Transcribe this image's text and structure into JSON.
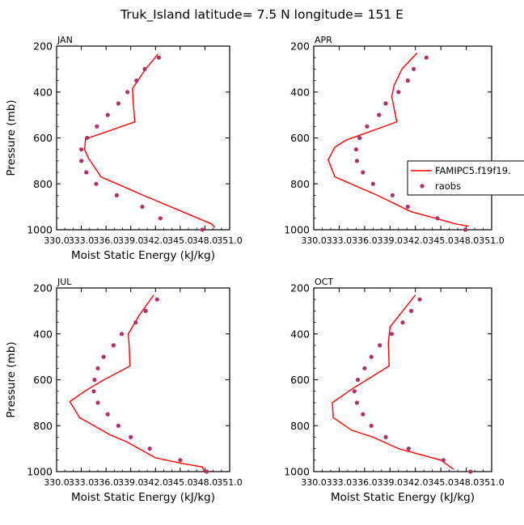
{
  "title": "Truk_Island  latitude= 7.5 N longitude= 151 E",
  "legend": {
    "model_label": "FAMIPC5.f19f19.",
    "obs_label": "raobs"
  },
  "colors": {
    "model_line": "#ff0000",
    "obs_marker": "#b0306a"
  },
  "chart_data": [
    {
      "type": "line",
      "panel": "JAN",
      "xlabel": "Moist Static Energy (kJ/kg)",
      "ylabel": "Pressure (mb)",
      "xlim": [
        330.0,
        351.0
      ],
      "ylim": [
        200,
        1000
      ],
      "y_reversed": true,
      "xticks": [
        330.0,
        333.0,
        336.0,
        339.0,
        342.0,
        345.0,
        348.0,
        351.0
      ],
      "yticks": [
        200,
        400,
        600,
        800,
        1000
      ],
      "legend_shown": false,
      "series": [
        {
          "name": "FAMIPC5.f19f19.",
          "kind": "line",
          "points": [
            [
              342.3,
              235
            ],
            [
              340.8,
              300
            ],
            [
              339.2,
              385
            ],
            [
              339.3,
              450
            ],
            [
              339.5,
              530
            ],
            [
              333.5,
              605
            ],
            [
              333.4,
              650
            ],
            [
              333.9,
              690
            ],
            [
              335.4,
              770
            ],
            [
              340.5,
              850
            ],
            [
              345.5,
              925
            ],
            [
              348.8,
              975
            ],
            [
              349.2,
              990
            ]
          ]
        },
        {
          "name": "raobs",
          "kind": "scatter",
          "points": [
            [
              342.4,
              250
            ],
            [
              340.7,
              300
            ],
            [
              339.7,
              350
            ],
            [
              338.6,
              400
            ],
            [
              337.5,
              450
            ],
            [
              336.2,
              500
            ],
            [
              334.9,
              550
            ],
            [
              333.7,
              600
            ],
            [
              333.0,
              650
            ],
            [
              333.0,
              700
            ],
            [
              333.6,
              750
            ],
            [
              334.8,
              800
            ],
            [
              337.3,
              850
            ],
            [
              340.4,
              900
            ],
            [
              342.6,
              950
            ],
            [
              347.7,
              1000
            ]
          ]
        }
      ]
    },
    {
      "type": "line",
      "panel": "APR",
      "xlabel": "",
      "ylabel": "",
      "xlim": [
        330.0,
        351.0
      ],
      "ylim": [
        200,
        1000
      ],
      "y_reversed": true,
      "xticks": [
        330.0,
        333.0,
        336.0,
        339.0,
        342.0,
        345.0,
        348.0,
        351.0
      ],
      "yticks": [
        200,
        400,
        600,
        800,
        1000
      ],
      "legend_shown": true,
      "legend_position": "right",
      "series": [
        {
          "name": "FAMIPC5.f19f19.",
          "kind": "line",
          "points": [
            [
              342.2,
              230
            ],
            [
              340.4,
              300
            ],
            [
              339.5,
              370
            ],
            [
              339.2,
              420
            ],
            [
              339.8,
              530
            ],
            [
              333.8,
              610
            ],
            [
              332.5,
              640
            ],
            [
              331.7,
              695
            ],
            [
              332.5,
              770
            ],
            [
              337.5,
              850
            ],
            [
              341.4,
              920
            ],
            [
              346.8,
              975
            ],
            [
              348.3,
              985
            ]
          ]
        },
        {
          "name": "raobs",
          "kind": "scatter",
          "points": [
            [
              343.3,
              250
            ],
            [
              341.8,
              300
            ],
            [
              341.1,
              350
            ],
            [
              340.0,
              400
            ],
            [
              338.5,
              450
            ],
            [
              337.7,
              500
            ],
            [
              336.3,
              550
            ],
            [
              335.4,
              600
            ],
            [
              335.0,
              650
            ],
            [
              335.1,
              700
            ],
            [
              335.8,
              750
            ],
            [
              337.0,
              800
            ],
            [
              339.3,
              850
            ],
            [
              341.1,
              900
            ],
            [
              344.6,
              950
            ],
            [
              347.9,
              1000
            ]
          ]
        }
      ]
    },
    {
      "type": "line",
      "panel": "JUL",
      "xlabel": "Moist Static Energy (kJ/kg)",
      "ylabel": "Pressure (mb)",
      "xlim": [
        330.0,
        351.0
      ],
      "ylim": [
        200,
        1000
      ],
      "y_reversed": true,
      "xticks": [
        330.0,
        333.0,
        336.0,
        339.0,
        342.0,
        345.0,
        348.0,
        351.0
      ],
      "yticks": [
        200,
        400,
        600,
        800,
        1000
      ],
      "legend_shown": false,
      "series": [
        {
          "name": "FAMIPC5.f19f19.",
          "kind": "line",
          "points": [
            [
              341.8,
              230
            ],
            [
              340.0,
              320
            ],
            [
              338.7,
              400
            ],
            [
              338.8,
              450
            ],
            [
              338.9,
              540
            ],
            [
              335.5,
              605
            ],
            [
              333.4,
              650
            ],
            [
              331.6,
              695
            ],
            [
              332.8,
              765
            ],
            [
              336.5,
              840
            ],
            [
              338.5,
              870
            ],
            [
              342.0,
              940
            ],
            [
              345.3,
              965
            ],
            [
              347.7,
              980
            ],
            [
              347.9,
              1000
            ]
          ]
        },
        {
          "name": "raobs",
          "kind": "scatter",
          "points": [
            [
              342.2,
              250
            ],
            [
              340.8,
              300
            ],
            [
              339.6,
              350
            ],
            [
              337.9,
              400
            ],
            [
              336.9,
              450
            ],
            [
              335.7,
              500
            ],
            [
              335.0,
              550
            ],
            [
              334.6,
              600
            ],
            [
              334.5,
              650
            ],
            [
              335.0,
              700
            ],
            [
              336.2,
              750
            ],
            [
              337.5,
              800
            ],
            [
              339.0,
              850
            ],
            [
              341.3,
              900
            ],
            [
              345.0,
              950
            ],
            [
              348.2,
              1000
            ]
          ]
        }
      ]
    },
    {
      "type": "line",
      "panel": "OCT",
      "xlabel": "Moist Static Energy (kJ/kg)",
      "ylabel": "",
      "xlim": [
        330.0,
        351.0
      ],
      "ylim": [
        200,
        1000
      ],
      "y_reversed": true,
      "xticks": [
        330.0,
        333.0,
        336.0,
        339.0,
        342.0,
        345.0,
        348.0,
        351.0
      ],
      "yticks": [
        200,
        400,
        600,
        800,
        1000
      ],
      "legend_shown": false,
      "series": [
        {
          "name": "FAMIPC5.f19f19.",
          "kind": "line",
          "points": [
            [
              342.0,
              230
            ],
            [
              340.5,
              300
            ],
            [
              339.0,
              370
            ],
            [
              338.8,
              440
            ],
            [
              338.9,
              540
            ],
            [
              334.5,
              640
            ],
            [
              332.2,
              700
            ],
            [
              332.3,
              765
            ],
            [
              334.5,
              820
            ],
            [
              337.0,
              850
            ],
            [
              340.0,
              900
            ],
            [
              345.0,
              950
            ],
            [
              346.5,
              990
            ]
          ]
        },
        {
          "name": "raobs",
          "kind": "scatter",
          "points": [
            [
              342.5,
              250
            ],
            [
              341.5,
              300
            ],
            [
              340.5,
              350
            ],
            [
              339.2,
              400
            ],
            [
              337.8,
              450
            ],
            [
              336.8,
              500
            ],
            [
              336.0,
              550
            ],
            [
              335.2,
              600
            ],
            [
              334.8,
              650
            ],
            [
              335.1,
              700
            ],
            [
              335.8,
              750
            ],
            [
              336.8,
              800
            ],
            [
              338.5,
              850
            ],
            [
              341.2,
              900
            ],
            [
              345.3,
              950
            ],
            [
              348.5,
              1000
            ]
          ]
        }
      ]
    }
  ]
}
